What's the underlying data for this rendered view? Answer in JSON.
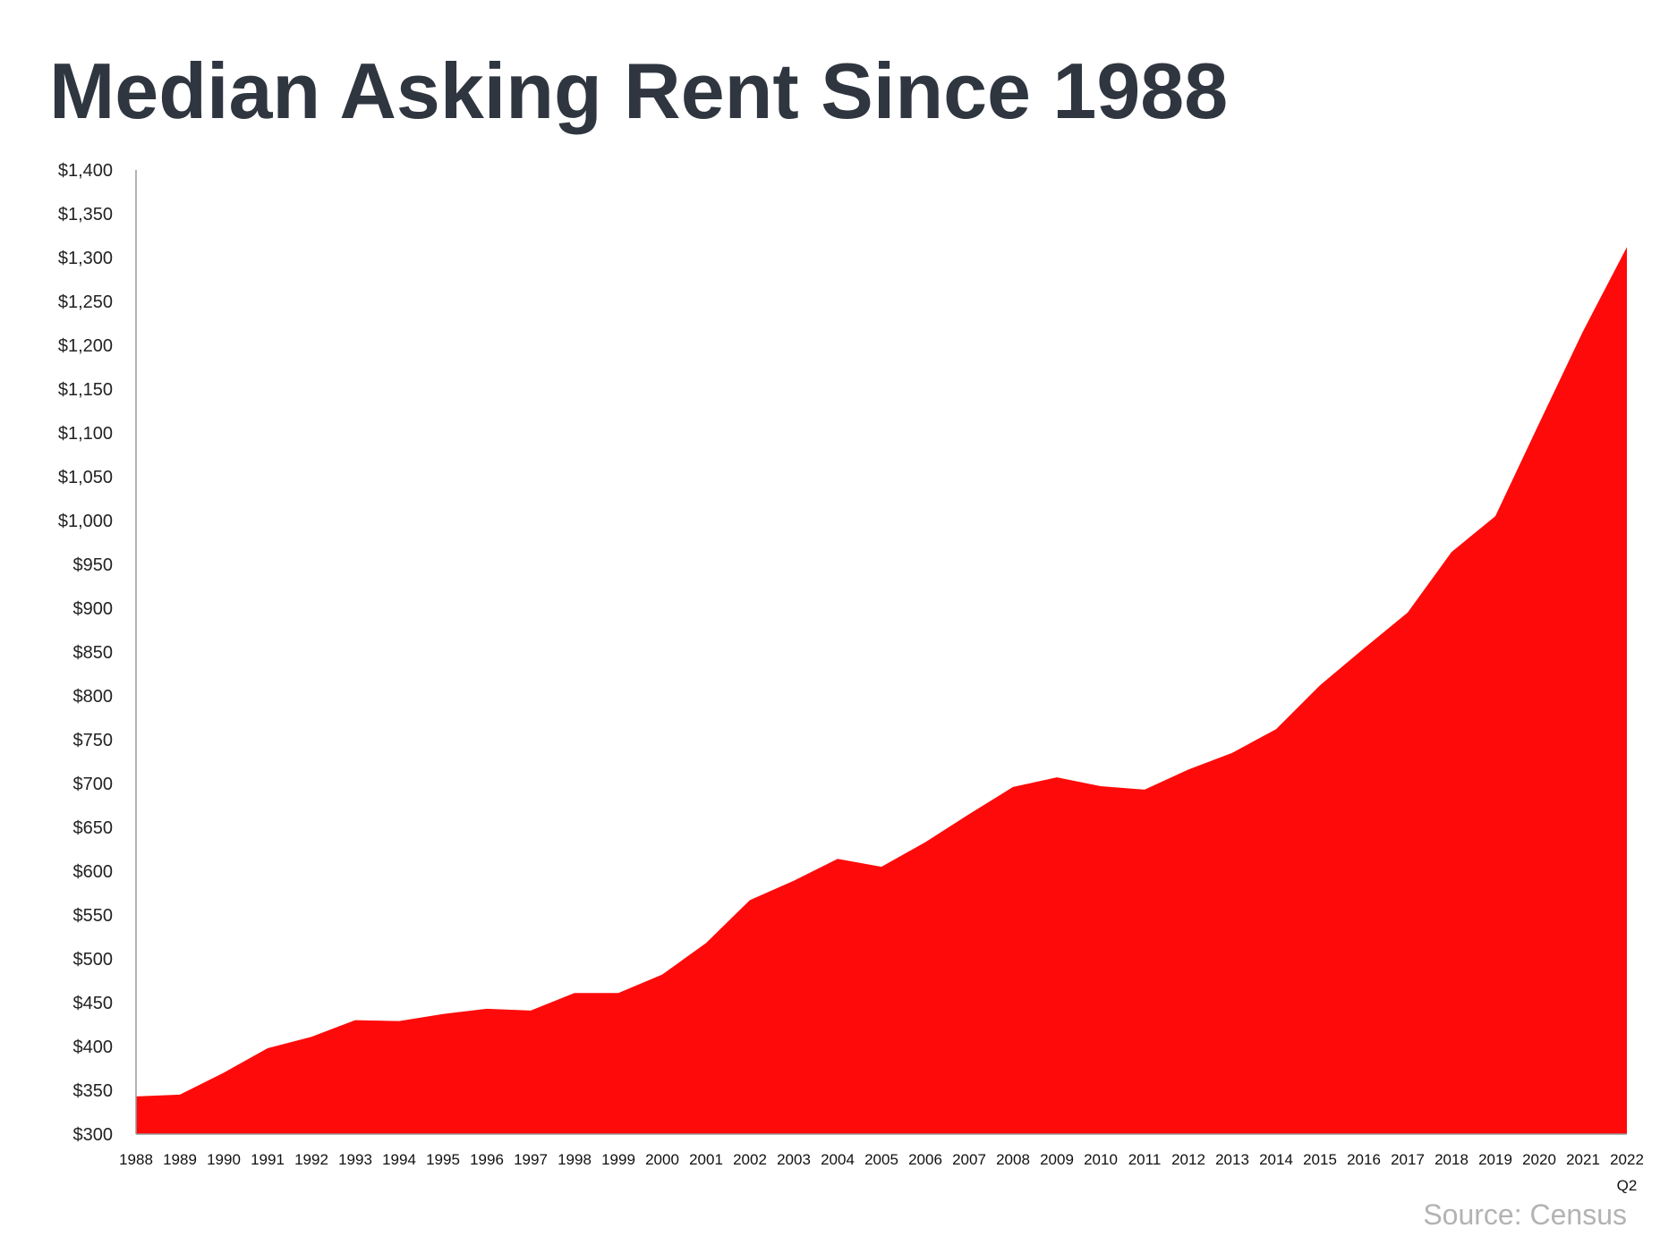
{
  "title": "Median Asking Rent Since 1988",
  "source": "Source: Census",
  "colors": {
    "area_fill": "#ff0a0a",
    "title": "#2f3640",
    "source": "#b3b3b3"
  },
  "chart_data": {
    "type": "area",
    "title": "Median Asking Rent Since 1988",
    "xlabel": "",
    "ylabel": "",
    "ylim": [
      300,
      1400
    ],
    "y_tick_step": 50,
    "y_tick_labels": [
      "$300",
      "$350",
      "$400",
      "$450",
      "$500",
      "$550",
      "$600",
      "$650",
      "$700",
      "$750",
      "$800",
      "$850",
      "$900",
      "$950",
      "$1,000",
      "$1,050",
      "$1,100",
      "$1,150",
      "$1,200",
      "$1,250",
      "$1,300",
      "$1,350",
      "$1,400"
    ],
    "categories": [
      "1988",
      "1989",
      "1990",
      "1991",
      "1992",
      "1993",
      "1994",
      "1995",
      "1996",
      "1997",
      "1998",
      "1999",
      "2000",
      "2001",
      "2002",
      "2003",
      "2004",
      "2005",
      "2006",
      "2007",
      "2008",
      "2009",
      "2010",
      "2011",
      "2012",
      "2013",
      "2014",
      "2015",
      "2016",
      "2017",
      "2018",
      "2019",
      "2020",
      "2021",
      "2022"
    ],
    "last_category_sublabel": "Q2",
    "values": [
      343,
      345,
      370,
      398,
      411,
      430,
      429,
      437,
      443,
      441,
      461,
      461,
      482,
      518,
      567,
      589,
      614,
      605,
      633,
      665,
      696,
      707,
      697,
      693,
      716,
      735,
      762,
      812,
      854,
      895,
      964,
      1005,
      1111,
      1216,
      1312
    ],
    "grid": false,
    "legend": "none"
  }
}
